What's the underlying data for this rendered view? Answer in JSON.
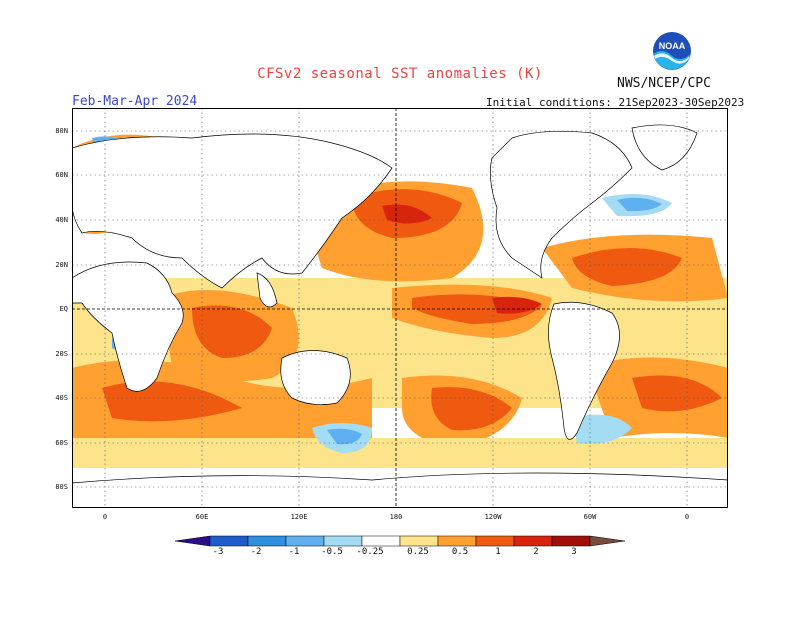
{
  "title": "CFSv2 seasonal SST anomalies (K)",
  "season": "Feb-Mar-Apr 2024",
  "agency": "NWS/NCEP/CPC",
  "logo_text": "NOAA",
  "initial_conditions": "Initial conditions: 21Sep2023-30Sep2023",
  "lat_labels": [
    "80N",
    "60N",
    "40N",
    "20N",
    "EQ",
    "20S",
    "40S",
    "60S",
    "80S"
  ],
  "lon_labels": [
    "0",
    "60E",
    "120E",
    "180",
    "120W",
    "60W",
    "0"
  ],
  "legend": {
    "labels": [
      "-3",
      "-2",
      "-1",
      "-0.5",
      "-0.25",
      "0.25",
      "0.5",
      "1",
      "2",
      "3"
    ],
    "colors": [
      "#2a0e8a",
      "#1e5ccc",
      "#2d8fe0",
      "#5fb0f0",
      "#a4dcf4",
      "#ffffff",
      "#fde38a",
      "#ffa030",
      "#ef5a10",
      "#d8240c",
      "#a01008",
      "#7a4a3a"
    ]
  }
}
